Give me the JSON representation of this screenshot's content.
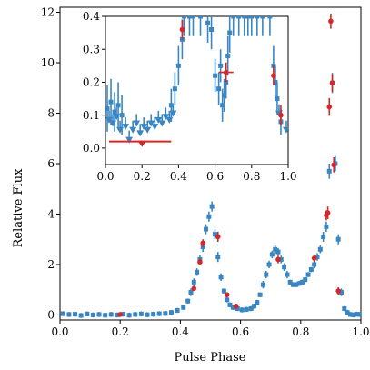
{
  "chart_data": [
    {
      "type": "scatter",
      "xlabel": "Pulse Phase",
      "ylabel": "Relative Flux",
      "xlim": [
        0.0,
        1.0
      ],
      "ylim": [
        -0.2,
        12.2
      ],
      "x_ticks": [
        "0.0",
        "0.2",
        "0.4",
        "0.6",
        "0.8",
        "1.0"
      ],
      "y_ticks": [
        "0",
        "2",
        "4",
        "6",
        "8",
        "10",
        "12"
      ],
      "grid": false,
      "series": [
        {
          "color": "#3a86c3",
          "marker": "square",
          "points": [
            [
              0.01,
              0.05,
              0.1
            ],
            [
              0.03,
              0.02,
              0.1
            ],
            [
              0.05,
              0.03,
              0.1
            ],
            [
              0.07,
              -0.02,
              0.1
            ],
            [
              0.09,
              0.04,
              0.1
            ],
            [
              0.11,
              0.0,
              0.1
            ],
            [
              0.13,
              0.02,
              0.1
            ],
            [
              0.15,
              -0.01,
              0.1
            ],
            [
              0.17,
              0.02,
              0.1
            ],
            [
              0.19,
              0.0,
              0.1
            ],
            [
              0.21,
              0.03,
              0.1
            ],
            [
              0.23,
              -0.01,
              0.1
            ],
            [
              0.25,
              0.02,
              0.1
            ],
            [
              0.27,
              0.04,
              0.1
            ],
            [
              0.29,
              0.01,
              0.1
            ],
            [
              0.31,
              0.03,
              0.1
            ],
            [
              0.33,
              0.05,
              0.1
            ],
            [
              0.35,
              0.06,
              0.1
            ],
            [
              0.37,
              0.1,
              0.1
            ],
            [
              0.39,
              0.18,
              0.1
            ],
            [
              0.41,
              0.3,
              0.1
            ],
            [
              0.425,
              0.55,
              0.1
            ],
            [
              0.435,
              0.9,
              0.15
            ],
            [
              0.445,
              1.3,
              0.15
            ],
            [
              0.455,
              1.7,
              0.15
            ],
            [
              0.465,
              2.2,
              0.15
            ],
            [
              0.475,
              2.7,
              0.2
            ],
            [
              0.485,
              3.4,
              0.2
            ],
            [
              0.495,
              3.9,
              0.2
            ],
            [
              0.505,
              4.3,
              0.2
            ],
            [
              0.515,
              3.2,
              0.2
            ],
            [
              0.525,
              2.3,
              0.2
            ],
            [
              0.535,
              1.5,
              0.15
            ],
            [
              0.545,
              0.95,
              0.1
            ],
            [
              0.555,
              0.6,
              0.1
            ],
            [
              0.565,
              0.4,
              0.1
            ],
            [
              0.575,
              0.3,
              0.1
            ],
            [
              0.59,
              0.25,
              0.1
            ],
            [
              0.605,
              0.2,
              0.1
            ],
            [
              0.62,
              0.22,
              0.1
            ],
            [
              0.635,
              0.25,
              0.1
            ],
            [
              0.645,
              0.35,
              0.1
            ],
            [
              0.655,
              0.5,
              0.1
            ],
            [
              0.665,
              0.8,
              0.1
            ],
            [
              0.675,
              1.2,
              0.15
            ],
            [
              0.685,
              1.6,
              0.15
            ],
            [
              0.695,
              2.0,
              0.15
            ],
            [
              0.705,
              2.4,
              0.15
            ],
            [
              0.715,
              2.6,
              0.15
            ],
            [
              0.725,
              2.5,
              0.15
            ],
            [
              0.735,
              2.2,
              0.15
            ],
            [
              0.745,
              1.9,
              0.15
            ],
            [
              0.755,
              1.6,
              0.15
            ],
            [
              0.765,
              1.3,
              0.1
            ],
            [
              0.775,
              1.2,
              0.1
            ],
            [
              0.785,
              1.2,
              0.1
            ],
            [
              0.795,
              1.25,
              0.1
            ],
            [
              0.805,
              1.3,
              0.1
            ],
            [
              0.815,
              1.4,
              0.1
            ],
            [
              0.825,
              1.6,
              0.1
            ],
            [
              0.835,
              1.8,
              0.1
            ],
            [
              0.845,
              2.0,
              0.15
            ],
            [
              0.855,
              2.3,
              0.15
            ],
            [
              0.865,
              2.6,
              0.15
            ],
            [
              0.875,
              3.1,
              0.2
            ],
            [
              0.885,
              3.5,
              0.2
            ],
            [
              0.895,
              5.7,
              0.3
            ],
            [
              0.905,
              9.2,
              0.4
            ],
            [
              0.915,
              6.0,
              0.3
            ],
            [
              0.925,
              3.0,
              0.2
            ],
            [
              0.935,
              0.9,
              0.15
            ],
            [
              0.945,
              0.25,
              0.1
            ],
            [
              0.955,
              0.1,
              0.1
            ],
            [
              0.965,
              0.02,
              0.1
            ],
            [
              0.975,
              0.0,
              0.1
            ],
            [
              0.985,
              0.03,
              0.1
            ],
            [
              0.995,
              0.02,
              0.1
            ]
          ]
        },
        {
          "color": "#d62728",
          "marker": "circle",
          "points": [
            [
              0.2,
              0.02,
              0.06
            ],
            [
              0.445,
              1.05,
              0.1
            ],
            [
              0.465,
              2.1,
              0.12
            ],
            [
              0.475,
              2.85,
              0.15
            ],
            [
              0.525,
              3.1,
              0.2
            ],
            [
              0.555,
              0.8,
              0.1
            ],
            [
              0.585,
              0.35,
              0.08
            ],
            [
              0.725,
              2.2,
              0.15
            ],
            [
              0.845,
              2.25,
              0.15
            ],
            [
              0.885,
              3.95,
              0.2
            ],
            [
              0.89,
              4.05,
              0.25
            ],
            [
              0.895,
              8.25,
              0.35
            ],
            [
              0.9,
              11.65,
              0.3
            ],
            [
              0.905,
              9.2,
              0.35
            ],
            [
              0.91,
              5.95,
              0.3
            ],
            [
              0.925,
              0.95,
              0.15
            ]
          ]
        }
      ]
    },
    {
      "type": "scatter",
      "role": "inset zoom",
      "xlim": [
        0.0,
        1.0
      ],
      "ylim": [
        -0.05,
        0.4
      ],
      "x_ticks": [
        "0.0",
        "0.2",
        "0.4",
        "0.6",
        "0.8",
        "1.0"
      ],
      "y_ticks": [
        "0.0",
        "0.1",
        "0.2",
        "0.3",
        "0.4"
      ],
      "grid": false,
      "series": [
        {
          "color": "#3a86c3",
          "marker": "square",
          "upper_limits_x": [
            0.02,
            0.04,
            0.06,
            0.08,
            0.11,
            0.13,
            0.15,
            0.17,
            0.19,
            0.21,
            0.23,
            0.25,
            0.27,
            0.29,
            0.31,
            0.33,
            0.35,
            0.37,
            0.95,
            0.99
          ],
          "upper_limits_y": [
            0.08,
            0.07,
            0.09,
            0.05,
            0.06,
            0.02,
            0.05,
            0.07,
            0.04,
            0.06,
            0.05,
            0.07,
            0.06,
            0.08,
            0.07,
            0.09,
            0.08,
            0.1,
            0.1,
            0.05
          ],
          "points": [
            [
              0.01,
              0.12,
              0.07
            ],
            [
              0.03,
              0.14,
              0.07
            ],
            [
              0.05,
              0.11,
              0.06
            ],
            [
              0.07,
              0.13,
              0.07
            ],
            [
              0.09,
              0.1,
              0.06
            ],
            [
              0.36,
              0.13,
              0.05
            ],
            [
              0.38,
              0.18,
              0.05
            ],
            [
              0.4,
              0.25,
              0.06
            ],
            [
              0.42,
              0.33,
              0.06
            ],
            [
              0.43,
              0.4,
              0.06
            ],
            [
              0.46,
              0.4,
              0.06
            ],
            [
              0.48,
              0.4,
              0.06
            ],
            [
              0.52,
              0.4,
              0.06
            ],
            [
              0.56,
              0.38,
              0.06
            ],
            [
              0.58,
              0.36,
              0.06
            ],
            [
              0.6,
              0.22,
              0.05
            ],
            [
              0.62,
              0.18,
              0.05
            ],
            [
              0.63,
              0.25,
              0.05
            ],
            [
              0.64,
              0.13,
              0.05
            ],
            [
              0.65,
              0.16,
              0.05
            ],
            [
              0.66,
              0.2,
              0.05
            ],
            [
              0.67,
              0.28,
              0.06
            ],
            [
              0.68,
              0.35,
              0.06
            ],
            [
              0.7,
              0.4,
              0.06
            ],
            [
              0.73,
              0.4,
              0.06
            ],
            [
              0.76,
              0.4,
              0.06
            ],
            [
              0.78,
              0.4,
              0.06
            ],
            [
              0.8,
              0.4,
              0.06
            ],
            [
              0.83,
              0.4,
              0.06
            ],
            [
              0.86,
              0.4,
              0.06
            ],
            [
              0.9,
              0.4,
              0.06
            ],
            [
              0.92,
              0.25,
              0.06
            ],
            [
              0.93,
              0.2,
              0.05
            ],
            [
              0.94,
              0.15,
              0.05
            ],
            [
              0.96,
              0.08,
              0.04
            ]
          ]
        },
        {
          "color": "#d62728",
          "marker": "circle",
          "points": [
            [
              0.42,
              0.36,
              0.03
            ],
            [
              0.66,
              0.23,
              0.03
            ],
            [
              0.92,
              0.22,
              0.03
            ],
            [
              0.96,
              0.1,
              0.03
            ]
          ],
          "line": {
            "x": [
              0.02,
              0.36
            ],
            "y": 0.02
          },
          "hline": {
            "x": [
              0.62,
              0.7
            ],
            "y": 0.23
          }
        }
      ]
    }
  ]
}
